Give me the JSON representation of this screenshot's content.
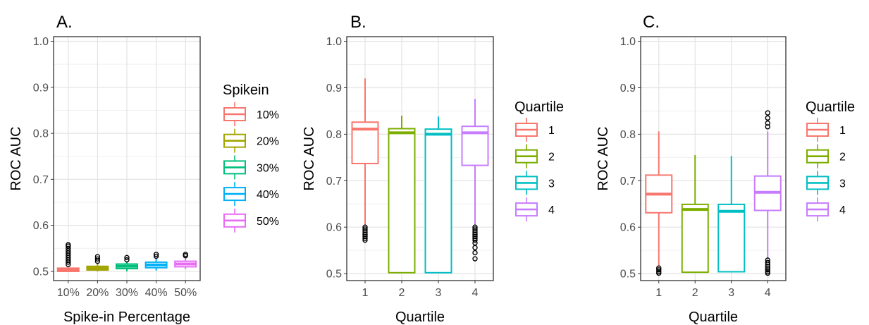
{
  "chart_data": [
    {
      "panel": "A.",
      "type": "box",
      "xlabel": "Spike-in Percentage",
      "ylabel": "ROC AUC",
      "categories": [
        "10%",
        "20%",
        "30%",
        "40%",
        "50%"
      ],
      "yticks": [
        "0.5",
        "0.6",
        "0.7",
        "0.8",
        "0.9",
        "1.0"
      ],
      "ylim": [
        0.48,
        1.01
      ],
      "grid": true,
      "legend_title": "Spikein",
      "legend_items": [
        "10%",
        "20%",
        "30%",
        "40%",
        "50%"
      ],
      "colors": [
        "#F8766D",
        "#A3A500",
        "#00BF7D",
        "#00B0F6",
        "#E76BF3"
      ],
      "boxes": [
        {
          "whisker_low": 0.5,
          "q1": 0.5,
          "median": 0.503,
          "q3": 0.507,
          "whisker_high": 0.512,
          "outliers": [
            0.515,
            0.52,
            0.525,
            0.53,
            0.535,
            0.54,
            0.545,
            0.55,
            0.555,
            0.558
          ]
        },
        {
          "whisker_low": 0.5,
          "q1": 0.503,
          "median": 0.507,
          "q3": 0.511,
          "whisker_high": 0.518,
          "outliers": [
            0.522,
            0.527,
            0.532
          ]
        },
        {
          "whisker_low": 0.5,
          "q1": 0.506,
          "median": 0.511,
          "q3": 0.516,
          "whisker_high": 0.522,
          "outliers": [
            0.525,
            0.53
          ]
        },
        {
          "whisker_low": 0.502,
          "q1": 0.508,
          "median": 0.514,
          "q3": 0.52,
          "whisker_high": 0.528,
          "outliers": [
            0.533,
            0.537
          ]
        },
        {
          "whisker_low": 0.505,
          "q1": 0.51,
          "median": 0.516,
          "q3": 0.522,
          "whisker_high": 0.53,
          "outliers": [
            0.534,
            0.537
          ]
        }
      ]
    },
    {
      "panel": "B.",
      "type": "box",
      "xlabel": "Quartile",
      "ylabel": "ROC AUC",
      "categories": [
        "1",
        "2",
        "3",
        "4"
      ],
      "yticks": [
        "0.5",
        "0.6",
        "0.7",
        "0.8",
        "0.9",
        "1.0"
      ],
      "ylim": [
        0.485,
        1.01
      ],
      "grid": true,
      "legend_title": "Quartile",
      "legend_items": [
        "1",
        "2",
        "3",
        "4"
      ],
      "colors": [
        "#F8766D",
        "#7CAE00",
        "#00BFC4",
        "#C77CFF"
      ],
      "boxes": [
        {
          "whisker_low": 0.603,
          "q1": 0.737,
          "median": 0.811,
          "q3": 0.826,
          "whisker_high": 0.92,
          "outliers": [
            0.6,
            0.596,
            0.592,
            0.588,
            0.584,
            0.58,
            0.576,
            0.572
          ]
        },
        {
          "whisker_low": 0.502,
          "q1": 0.502,
          "median": 0.803,
          "q3": 0.812,
          "whisker_high": 0.84,
          "outliers": []
        },
        {
          "whisker_low": 0.502,
          "q1": 0.502,
          "median": 0.8,
          "q3": 0.811,
          "whisker_high": 0.838,
          "outliers": []
        },
        {
          "whisker_low": 0.603,
          "q1": 0.733,
          "median": 0.803,
          "q3": 0.817,
          "whisker_high": 0.876,
          "outliers": [
            0.6,
            0.596,
            0.592,
            0.588,
            0.584,
            0.58,
            0.576,
            0.572,
            0.566,
            0.556,
            0.545,
            0.532
          ]
        }
      ]
    },
    {
      "panel": "C.",
      "type": "box",
      "xlabel": "Quartile",
      "ylabel": "ROC AUC",
      "categories": [
        "1",
        "2",
        "3",
        "4"
      ],
      "yticks": [
        "0.5",
        "0.6",
        "0.7",
        "0.8",
        "0.9",
        "1.0"
      ],
      "ylim": [
        0.485,
        1.01
      ],
      "grid": true,
      "legend_title": "Quartile",
      "legend_items": [
        "1",
        "2",
        "3",
        "4"
      ],
      "colors": [
        "#F8766D",
        "#7CAE00",
        "#00BFC4",
        "#C77CFF"
      ],
      "boxes": [
        {
          "whisker_low": 0.515,
          "q1": 0.631,
          "median": 0.671,
          "q3": 0.712,
          "whisker_high": 0.806,
          "outliers": [
            0.512,
            0.508,
            0.504,
            0.501
          ]
        },
        {
          "whisker_low": 0.503,
          "q1": 0.503,
          "median": 0.638,
          "q3": 0.649,
          "whisker_high": 0.755,
          "outliers": []
        },
        {
          "whisker_low": 0.503,
          "q1": 0.504,
          "median": 0.634,
          "q3": 0.649,
          "whisker_high": 0.753,
          "outliers": []
        },
        {
          "whisker_low": 0.532,
          "q1": 0.636,
          "median": 0.675,
          "q3": 0.71,
          "whisker_high": 0.806,
          "outliers": [
            0.529,
            0.524,
            0.52,
            0.516,
            0.512,
            0.508,
            0.504,
            0.501,
            0.816,
            0.824,
            0.835,
            0.846
          ]
        }
      ]
    }
  ]
}
